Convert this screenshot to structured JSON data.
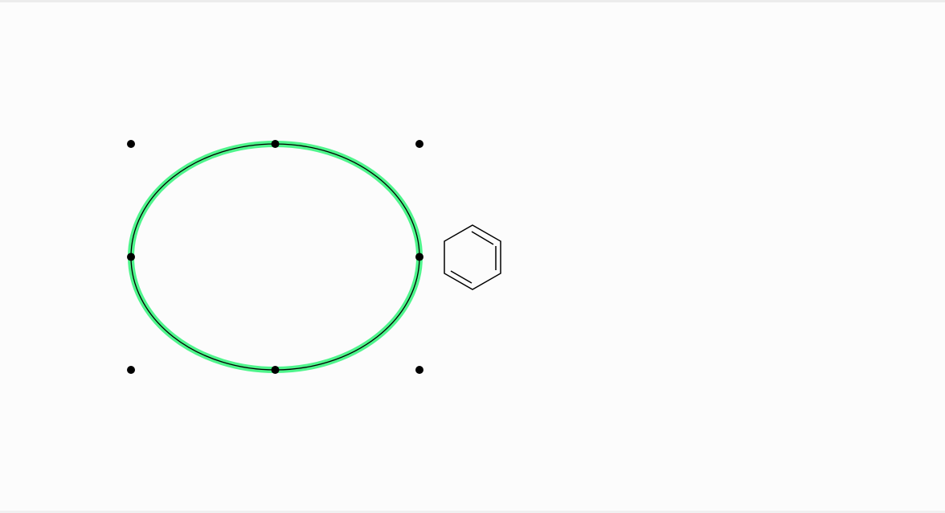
{
  "canvas": {
    "background_color": "#fcfcfc",
    "selected_shape": "ellipse",
    "selection_highlight_color": "#4ff58c",
    "stroke_color": "#000000"
  },
  "shapes": [
    {
      "kind": "ellipse",
      "icon": "ellipse-shape",
      "selected": true
    },
    {
      "kind": "benzene-ring",
      "icon": "benzene-ring-icon",
      "selected": false
    }
  ],
  "selection_handles": {
    "count": 8,
    "color": "#000000"
  }
}
